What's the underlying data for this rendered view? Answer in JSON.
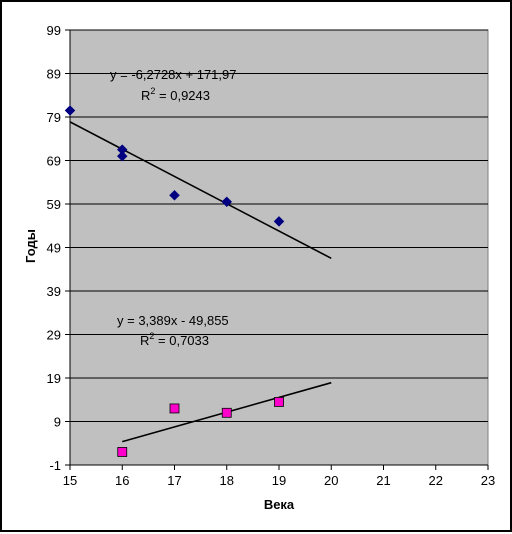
{
  "chart_data": {
    "type": "scatter",
    "title": "",
    "xlabel": "Века",
    "ylabel": "Годы",
    "xlim": [
      15,
      23
    ],
    "ylim": [
      -1,
      99
    ],
    "x_ticks": [
      15,
      16,
      17,
      18,
      19,
      20,
      21,
      22,
      23
    ],
    "y_ticks": [
      -1,
      9,
      19,
      29,
      39,
      49,
      59,
      69,
      79,
      89,
      99
    ],
    "grid": "horizontal",
    "plot_background": "#c0c0c0",
    "series": [
      {
        "marker": "diamond",
        "color": "#000080",
        "points": [
          {
            "x": 15,
            "y": 80.5
          },
          {
            "x": 16,
            "y": 71.5
          },
          {
            "x": 16,
            "y": 70
          },
          {
            "x": 17,
            "y": 61
          },
          {
            "x": 18,
            "y": 59.5
          },
          {
            "x": 19,
            "y": 55
          }
        ],
        "trendline": {
          "slope": -6.2728,
          "intercept": 171.97,
          "x_range": [
            15,
            20
          ],
          "equation_label": "y = -6,2728x + 171,97",
          "r2_label_prefix": "R",
          "r2_label_superscript": "2",
          "r2_label_value": " = 0,9243"
        }
      },
      {
        "marker": "square",
        "color": "#ff00cc",
        "points": [
          {
            "x": 16,
            "y": 2
          },
          {
            "x": 17,
            "y": 12
          },
          {
            "x": 18,
            "y": 11
          },
          {
            "x": 19,
            "y": 13.5
          }
        ],
        "trendline": {
          "slope": 3.389,
          "intercept": -49.855,
          "x_range": [
            16,
            20
          ],
          "equation_label": "y = 3,389x - 49,855",
          "r2_label_prefix": "R",
          "r2_label_superscript": "2",
          "r2_label_value": " = 0,7033"
        }
      }
    ]
  }
}
